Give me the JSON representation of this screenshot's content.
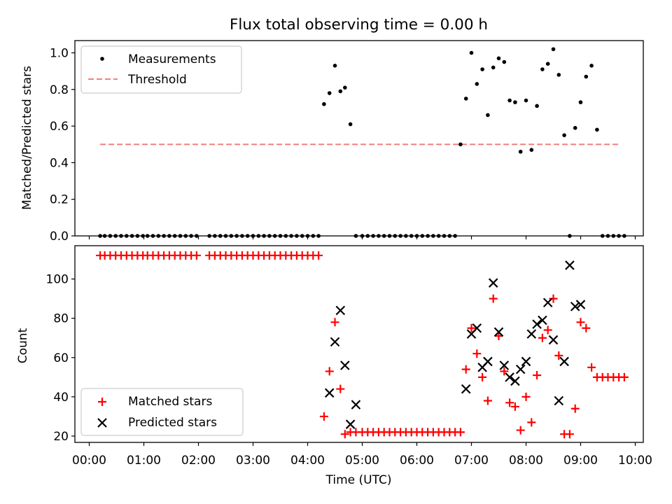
{
  "chart_data": [
    {
      "type": "scatter",
      "title": "Flux total observing time = 0.00 h",
      "xlabel": "",
      "ylabel": "Matched/Predicted stars",
      "xlim": [
        "23:40",
        "10:10"
      ],
      "ylim": [
        0,
        1.07
      ],
      "yticks": [
        "0.0",
        "0.2",
        "0.4",
        "0.6",
        "0.8",
        "1.0"
      ],
      "legend": {
        "placement": "upper-left",
        "entries": [
          "Measurements",
          "Threshold"
        ]
      },
      "threshold": {
        "name": "Threshold",
        "y": 0.5,
        "x": [
          "00:12",
          "09:42"
        ],
        "color": "#f08080",
        "style": "dashed"
      },
      "measurements": {
        "name": "Measurements",
        "color": "#000000",
        "x": [
          "00:12",
          "00:17",
          "00:23",
          "00:29",
          "00:35",
          "00:41",
          "00:47",
          "00:53",
          "00:59",
          "01:04",
          "01:10",
          "01:16",
          "01:22",
          "01:28",
          "01:34",
          "01:40",
          "01:46",
          "01:52",
          "01:58",
          "02:12",
          "02:18",
          "02:24",
          "02:30",
          "02:36",
          "02:42",
          "02:48",
          "02:54",
          "03:00",
          "03:06",
          "03:12",
          "03:18",
          "03:24",
          "03:30",
          "03:36",
          "03:42",
          "03:48",
          "03:54",
          "04:00",
          "04:06",
          "04:12",
          "04:18",
          "04:24",
          "04:30",
          "04:36",
          "04:41",
          "04:47",
          "04:53",
          "05:00",
          "05:06",
          "05:12",
          "05:18",
          "05:24",
          "05:30",
          "05:36",
          "05:42",
          "05:48",
          "05:54",
          "06:00",
          "06:06",
          "06:12",
          "06:18",
          "06:24",
          "06:30",
          "06:36",
          "06:42",
          "06:48",
          "06:54",
          "07:00",
          "07:06",
          "07:12",
          "07:18",
          "07:24",
          "07:30",
          "07:36",
          "07:42",
          "07:48",
          "07:54",
          "08:00",
          "08:06",
          "08:12",
          "08:18",
          "08:24",
          "08:30",
          "08:36",
          "08:42",
          "08:48",
          "08:54",
          "09:00",
          "09:06",
          "09:12",
          "09:18",
          "09:24",
          "09:30",
          "09:36",
          "09:42",
          "09:48"
        ],
        "y": [
          0,
          0,
          0,
          0,
          0,
          0,
          0,
          0,
          0,
          0,
          0,
          0,
          0,
          0,
          0,
          0,
          0,
          0,
          0,
          0,
          0,
          0,
          0,
          0,
          0,
          0,
          0,
          0,
          0,
          0,
          0,
          0,
          0,
          0,
          0,
          0,
          0,
          0,
          0,
          0,
          0.72,
          0.78,
          0.93,
          0.79,
          0.81,
          0.61,
          0,
          0,
          0,
          0,
          0,
          0,
          0,
          0,
          0,
          0,
          0,
          0,
          0,
          0,
          0,
          0,
          0,
          0,
          0,
          0.5,
          0.75,
          1.0,
          0.83,
          0.91,
          0.66,
          0.92,
          0.97,
          0.95,
          0.74,
          0.73,
          0.46,
          0.74,
          0.47,
          0.71,
          0.91,
          0.94,
          1.02,
          0.88,
          0.55,
          0,
          0.59,
          0.73,
          0.87,
          0.93,
          0.58,
          0,
          0,
          0,
          0,
          0
        ]
      }
    },
    {
      "type": "scatter",
      "title": "",
      "xlabel": "Time (UTC)",
      "ylabel": "Count",
      "xlim": [
        "23:40",
        "10:10"
      ],
      "ylim": [
        17,
        116
      ],
      "xticks": [
        "00:00",
        "01:00",
        "02:00",
        "03:00",
        "04:00",
        "05:00",
        "06:00",
        "07:00",
        "08:00",
        "09:00",
        "10:00"
      ],
      "yticks": [
        "20",
        "40",
        "60",
        "80",
        "100"
      ],
      "legend": {
        "placement": "lower-left",
        "entries": [
          "Matched stars",
          "Predicted stars"
        ]
      },
      "series": [
        {
          "name": "Matched stars",
          "marker": "plus",
          "color": "#ff0000",
          "x": [
            "00:12",
            "00:17",
            "00:23",
            "00:29",
            "00:35",
            "00:41",
            "00:47",
            "00:53",
            "00:59",
            "01:04",
            "01:10",
            "01:16",
            "01:22",
            "01:28",
            "01:34",
            "01:40",
            "01:46",
            "01:52",
            "01:58",
            "02:12",
            "02:18",
            "02:24",
            "02:30",
            "02:36",
            "02:42",
            "02:48",
            "02:54",
            "03:00",
            "03:06",
            "03:12",
            "03:18",
            "03:24",
            "03:30",
            "03:36",
            "03:42",
            "03:48",
            "03:54",
            "04:00",
            "04:06",
            "04:12",
            "04:18",
            "04:24",
            "04:30",
            "04:36",
            "04:41",
            "04:47",
            "04:53",
            "05:00",
            "05:06",
            "05:12",
            "05:18",
            "05:24",
            "05:30",
            "05:36",
            "05:42",
            "05:48",
            "05:54",
            "06:00",
            "06:06",
            "06:12",
            "06:18",
            "06:24",
            "06:30",
            "06:36",
            "06:42",
            "06:48",
            "06:54",
            "07:00",
            "07:06",
            "07:12",
            "07:18",
            "07:24",
            "07:30",
            "07:36",
            "07:42",
            "07:48",
            "07:54",
            "08:00",
            "08:06",
            "08:12",
            "08:18",
            "08:24",
            "08:30",
            "08:36",
            "08:42",
            "08:48",
            "08:54",
            "09:00",
            "09:06",
            "09:12",
            "09:18",
            "09:24",
            "09:30",
            "09:36",
            "09:42",
            "09:48"
          ],
          "y": [
            112,
            112,
            112,
            112,
            112,
            112,
            112,
            112,
            112,
            112,
            112,
            112,
            112,
            112,
            112,
            112,
            112,
            112,
            112,
            112,
            112,
            112,
            112,
            112,
            112,
            112,
            112,
            112,
            112,
            112,
            112,
            112,
            112,
            112,
            112,
            112,
            112,
            112,
            112,
            112,
            30,
            53,
            78,
            44,
            21,
            22,
            22,
            22,
            22,
            22,
            22,
            22,
            22,
            22,
            22,
            22,
            22,
            22,
            22,
            22,
            22,
            22,
            22,
            22,
            22,
            22,
            54,
            75,
            62,
            50,
            38,
            90,
            71,
            53,
            37,
            35,
            23,
            40,
            27,
            51,
            70,
            74,
            90,
            61,
            21,
            21,
            34,
            78,
            75,
            55,
            50,
            50,
            50,
            50,
            50,
            50
          ]
        },
        {
          "name": "Predicted stars",
          "marker": "x",
          "color": "#000000",
          "x": [
            "04:24",
            "04:30",
            "04:36",
            "04:41",
            "04:47",
            "04:53",
            "06:54",
            "07:00",
            "07:06",
            "07:12",
            "07:18",
            "07:24",
            "07:30",
            "07:36",
            "07:42",
            "07:48",
            "07:54",
            "08:00",
            "08:06",
            "08:12",
            "08:18",
            "08:24",
            "08:30",
            "08:36",
            "08:42",
            "08:48",
            "08:54",
            "09:00"
          ],
          "y": [
            42,
            68,
            84,
            56,
            26,
            36,
            44,
            72,
            75,
            55,
            58,
            98,
            73,
            56,
            50,
            48,
            54,
            58,
            72,
            77,
            79,
            88,
            69,
            38,
            58,
            107,
            86,
            87
          ]
        }
      ]
    }
  ]
}
